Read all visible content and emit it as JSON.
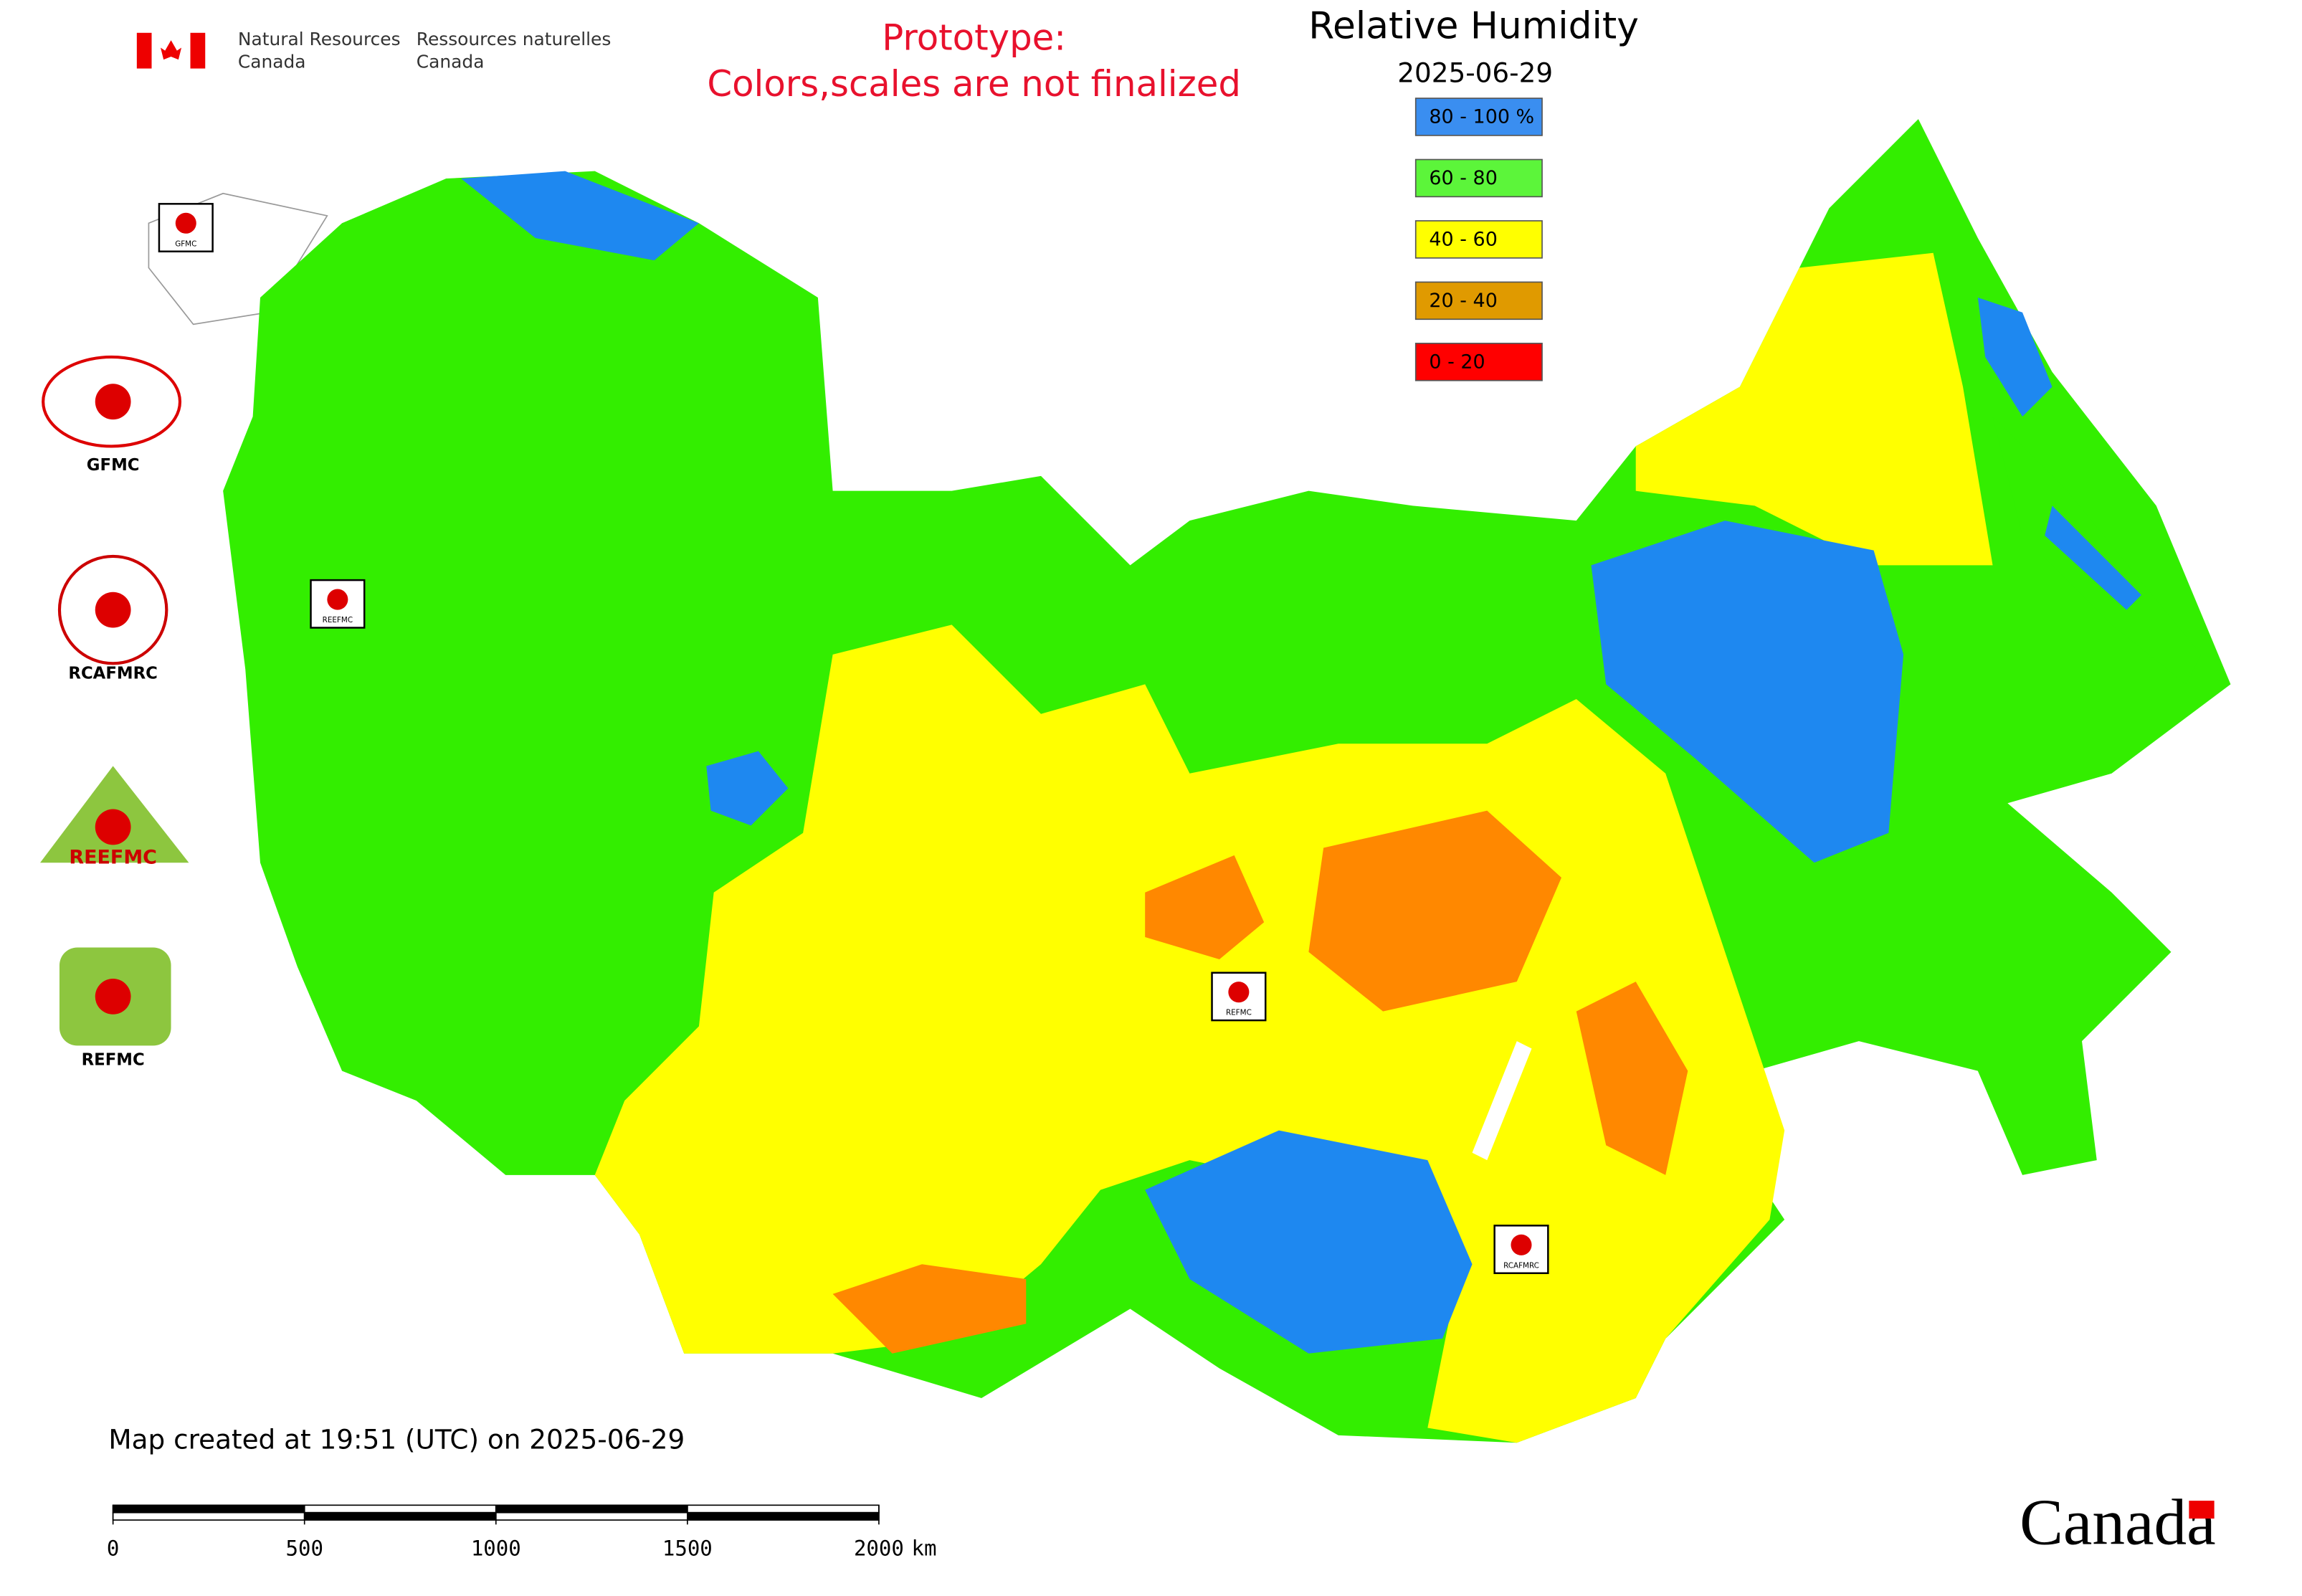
{
  "header": {
    "department_en": [
      "Natural Resources",
      "Canada"
    ],
    "department_fr": [
      "Ressources naturelles",
      "Canada"
    ]
  },
  "prototype_note": [
    "Prototype:",
    "Colors,scales are not finalized"
  ],
  "title": "Relative Humidity",
  "date": "2025-06-29",
  "legend": [
    {
      "label": "80 - 100 %",
      "color": "#3a8ef0"
    },
    {
      "label": "60 - 80",
      "color": "#5cf53a"
    },
    {
      "label": "40 - 60",
      "color": "#ffff00"
    },
    {
      "label": "20 - 40",
      "color": "#e09a00"
    },
    {
      "label": "0 - 20",
      "color": "#ff0000"
    }
  ],
  "logos": [
    "GFMC",
    "RCAFMRC",
    "REEFMC",
    "REFMC"
  ],
  "map_markers": [
    "GFMC",
    "REEFMC",
    "REFMC",
    "RCAFMRC"
  ],
  "footer": "Map created at 19:51 (UTC) on 2025-06-29",
  "scale": {
    "ticks": [
      0,
      500,
      1000,
      1500,
      2000
    ],
    "unit": "km"
  },
  "wordmark": "Canada"
}
